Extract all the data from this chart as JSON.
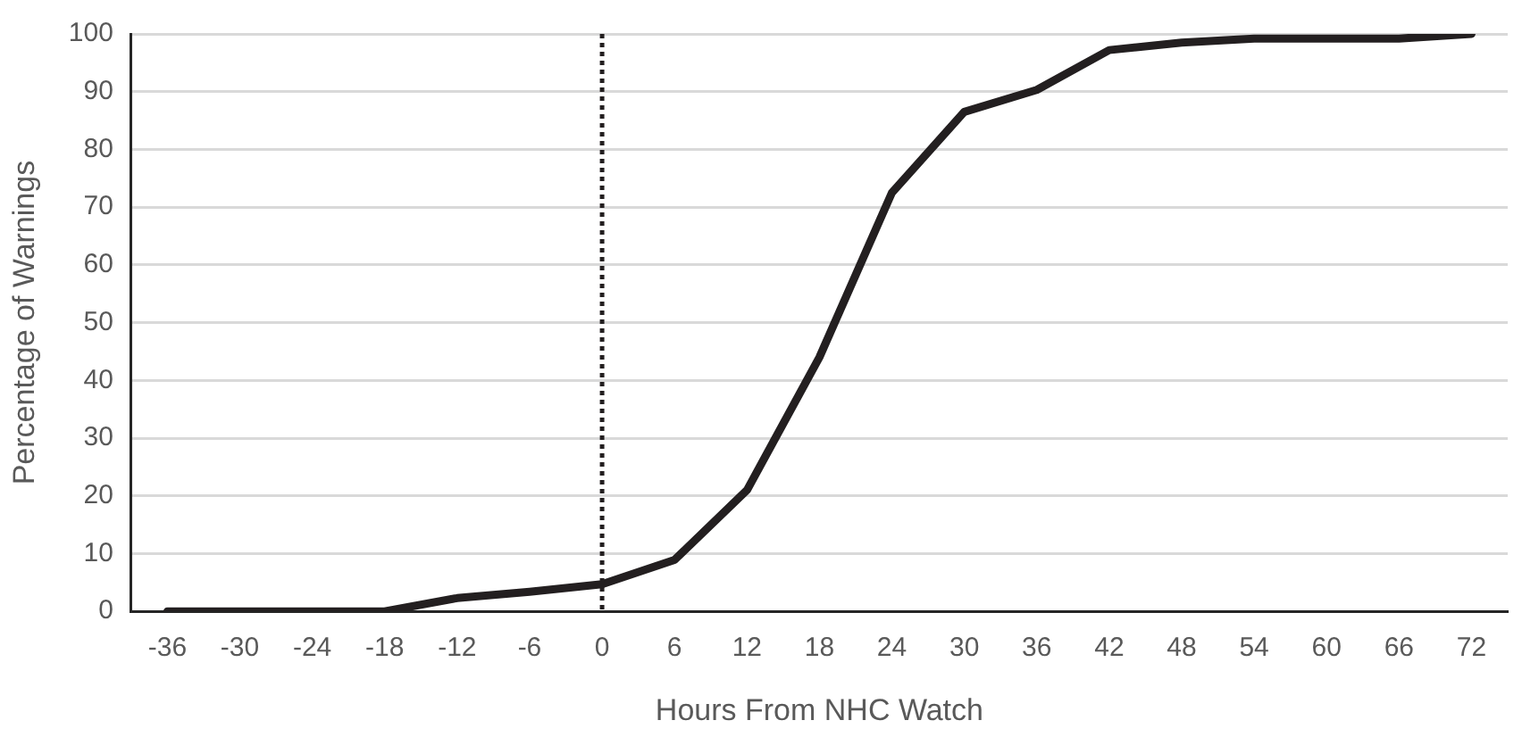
{
  "chart_data": {
    "type": "line",
    "xlabel": "Hours From NHC Watch",
    "ylabel": "Percentage of Warnings",
    "categories": [
      "-36",
      "-30",
      "-24",
      "-18",
      "-12",
      "-6",
      "0",
      "6",
      "12",
      "18",
      "24",
      "30",
      "36",
      "42",
      "48",
      "54",
      "60",
      "66",
      "72"
    ],
    "series": [
      {
        "color": "#231f20",
        "values": [
          0,
          0,
          0,
          0,
          2.3,
          3.4,
          4.7,
          8.9,
          21,
          44,
          72.5,
          86.5,
          90.3,
          97.2,
          98.5,
          99.2,
          99.2,
          99.2,
          100
        ]
      }
    ],
    "ylim": [
      0,
      100
    ],
    "yticks": [
      0,
      10,
      20,
      30,
      40,
      50,
      60,
      70,
      80,
      90,
      100
    ],
    "grid": "y",
    "legend": false,
    "marker": "none",
    "line_style": "solid",
    "ref_lines": [
      {
        "axis": "x",
        "value": "0",
        "color": "#231f20",
        "line_style": "dotted"
      }
    ]
  }
}
